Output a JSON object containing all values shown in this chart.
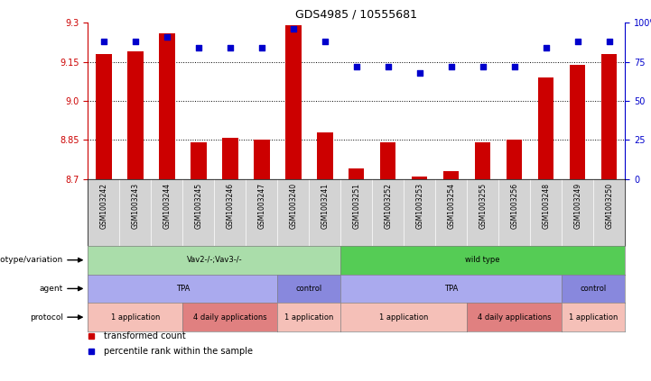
{
  "title": "GDS4985 / 10555681",
  "samples": [
    "GSM1003242",
    "GSM1003243",
    "GSM1003244",
    "GSM1003245",
    "GSM1003246",
    "GSM1003247",
    "GSM1003240",
    "GSM1003241",
    "GSM1003251",
    "GSM1003252",
    "GSM1003253",
    "GSM1003254",
    "GSM1003255",
    "GSM1003256",
    "GSM1003248",
    "GSM1003249",
    "GSM1003250"
  ],
  "bar_values": [
    9.18,
    9.19,
    9.26,
    8.84,
    8.86,
    8.85,
    9.29,
    8.88,
    8.74,
    8.84,
    8.71,
    8.73,
    8.84,
    8.85,
    9.09,
    9.14,
    9.18
  ],
  "percentile_values": [
    88,
    88,
    91,
    84,
    84,
    84,
    96,
    88,
    72,
    72,
    68,
    72,
    72,
    72,
    84,
    88,
    88
  ],
  "ylim_left": [
    8.7,
    9.3
  ],
  "ylim_right": [
    0,
    100
  ],
  "yticks_left": [
    8.7,
    8.85,
    9.0,
    9.15,
    9.3
  ],
  "yticks_right": [
    0,
    25,
    50,
    75,
    100
  ],
  "bar_color": "#cc0000",
  "dot_color": "#0000cc",
  "background_color": "#ffffff",
  "xticklabel_bg": "#d3d3d3",
  "annotation_rows": [
    {
      "label": "genotype/variation",
      "segments": [
        {
          "text": "Vav2-/-;Vav3-/-",
          "start": 0,
          "end": 8,
          "color": "#aaddaa"
        },
        {
          "text": "wild type",
          "start": 8,
          "end": 17,
          "color": "#55cc55"
        }
      ]
    },
    {
      "label": "agent",
      "segments": [
        {
          "text": "TPA",
          "start": 0,
          "end": 6,
          "color": "#aaaaee"
        },
        {
          "text": "control",
          "start": 6,
          "end": 8,
          "color": "#8888dd"
        },
        {
          "text": "TPA",
          "start": 8,
          "end": 15,
          "color": "#aaaaee"
        },
        {
          "text": "control",
          "start": 15,
          "end": 17,
          "color": "#8888dd"
        }
      ]
    },
    {
      "label": "protocol",
      "segments": [
        {
          "text": "1 application",
          "start": 0,
          "end": 3,
          "color": "#f5c0b8"
        },
        {
          "text": "4 daily applications",
          "start": 3,
          "end": 6,
          "color": "#e08080"
        },
        {
          "text": "1 application",
          "start": 6,
          "end": 8,
          "color": "#f5c0b8"
        },
        {
          "text": "1 application",
          "start": 8,
          "end": 12,
          "color": "#f5c0b8"
        },
        {
          "text": "4 daily applications",
          "start": 12,
          "end": 15,
          "color": "#e08080"
        },
        {
          "text": "1 application",
          "start": 15,
          "end": 17,
          "color": "#f5c0b8"
        }
      ]
    }
  ],
  "legend_items": [
    {
      "label": "transformed count",
      "color": "#cc0000"
    },
    {
      "label": "percentile rank within the sample",
      "color": "#0000cc"
    }
  ]
}
